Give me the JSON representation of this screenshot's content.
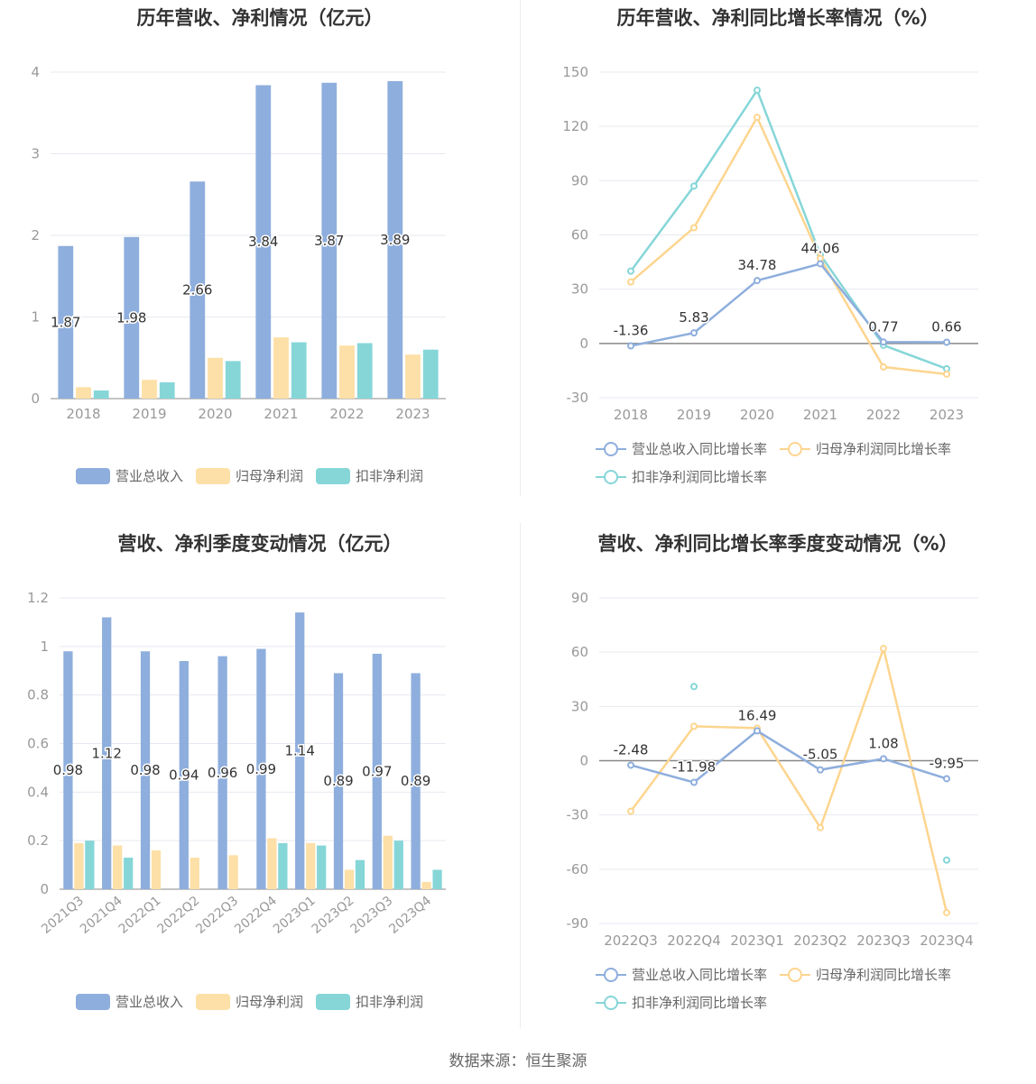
{
  "source_text": "数据来源：恒生聚源",
  "colors": {
    "revenue": "#8eaedd",
    "net": "#fde0a7",
    "deduct": "#86d6d8",
    "axis": "#999999",
    "grid": "#e6e9f0",
    "zero": "#888888"
  },
  "chart_data": [
    {
      "id": "annual-bar",
      "type": "bar",
      "title": "历年营收、净利情况（亿元）",
      "categories": [
        "2018",
        "2019",
        "2020",
        "2021",
        "2022",
        "2023"
      ],
      "ylim": [
        0,
        4
      ],
      "yticks": [
        "0",
        "1",
        "2",
        "3",
        "4"
      ],
      "series": [
        {
          "name": "营业总收入",
          "color": "#8eaedd",
          "values": [
            1.87,
            1.98,
            2.66,
            3.84,
            3.87,
            3.89
          ],
          "labels": [
            "1.87",
            "1.98",
            "2.66",
            "3.84",
            "3.87",
            "3.89"
          ]
        },
        {
          "name": "归母净利润",
          "color": "#fde0a7",
          "values": [
            0.14,
            0.23,
            0.5,
            0.75,
            0.65,
            0.54
          ]
        },
        {
          "name": "扣非净利润",
          "color": "#86d6d8",
          "values": [
            0.1,
            0.2,
            0.46,
            0.69,
            0.68,
            0.6
          ]
        }
      ],
      "legend": "bottom"
    },
    {
      "id": "annual-growth",
      "type": "line",
      "title": "历年营收、净利同比增长率情况（%）",
      "categories": [
        "2018",
        "2019",
        "2020",
        "2021",
        "2022",
        "2023"
      ],
      "ylim": [
        -30,
        150
      ],
      "yticks": [
        "-30",
        "0",
        "30",
        "60",
        "90",
        "120",
        "150"
      ],
      "series": [
        {
          "name": "营业总收入同比增长率",
          "color": "#8eaedd",
          "values": [
            -1.36,
            5.83,
            34.78,
            44.06,
            0.77,
            0.66
          ],
          "labels": [
            "-1.36",
            "5.83",
            "34.78",
            "44.06",
            "0.77",
            "0.66"
          ]
        },
        {
          "name": "归母净利润同比增长率",
          "color": "#fdd58f",
          "values": [
            34,
            64,
            125,
            47,
            -13,
            -17
          ]
        },
        {
          "name": "扣非净利润同比增长率",
          "color": "#86d6d8",
          "values": [
            40,
            87,
            140,
            49,
            -1,
            -14
          ]
        }
      ],
      "legend": "bottom"
    },
    {
      "id": "quarterly-bar",
      "type": "bar",
      "title": "营收、净利季度变动情况（亿元）",
      "categories": [
        "2021Q3",
        "2021Q4",
        "2022Q1",
        "2022Q2",
        "2022Q3",
        "2022Q4",
        "2023Q1",
        "2023Q2",
        "2023Q3",
        "2023Q4"
      ],
      "ylim": [
        0,
        1.2
      ],
      "yticks": [
        "0",
        "0.2",
        "0.4",
        "0.6",
        "0.8",
        "1",
        "1.2"
      ],
      "series": [
        {
          "name": "营业总收入",
          "color": "#8eaedd",
          "values": [
            0.98,
            1.12,
            0.98,
            0.94,
            0.96,
            0.99,
            1.14,
            0.89,
            0.97,
            0.89
          ],
          "labels": [
            "0.98",
            "1.12",
            "0.98",
            "0.94",
            "0.96",
            "0.99",
            "1.14",
            "0.89",
            "0.97",
            "0.89"
          ]
        },
        {
          "name": "归母净利润",
          "color": "#fde0a7",
          "values": [
            0.19,
            0.18,
            0.16,
            0.13,
            0.14,
            0.21,
            0.19,
            0.08,
            0.22,
            0.03
          ]
        },
        {
          "name": "扣非净利润",
          "color": "#86d6d8",
          "values": [
            0.2,
            0.13,
            null,
            null,
            null,
            0.19,
            0.18,
            0.12,
            0.2,
            0.08
          ]
        }
      ],
      "legend": "bottom"
    },
    {
      "id": "quarterly-growth",
      "type": "line",
      "title": "营收、净利同比增长率季度变动情况（%）",
      "categories": [
        "2022Q3",
        "2022Q4",
        "2023Q1",
        "2023Q2",
        "2023Q3",
        "2023Q4"
      ],
      "ylim": [
        -90,
        90
      ],
      "yticks": [
        "-90",
        "-60",
        "-30",
        "0",
        "30",
        "60",
        "90"
      ],
      "series": [
        {
          "name": "营业总收入同比增长率",
          "color": "#8eaedd",
          "values": [
            -2.48,
            -11.98,
            16.49,
            -5.05,
            1.08,
            -9.95
          ],
          "labels": [
            "-2.48",
            "-11.98",
            "16.49",
            "-5.05",
            "1.08",
            "-9.95"
          ]
        },
        {
          "name": "归母净利润同比增长率",
          "color": "#fdd58f",
          "values": [
            -28,
            19,
            18,
            -37,
            62,
            -84
          ]
        },
        {
          "name": "扣非净利润同比增长率",
          "color": "#86d6d8",
          "values": [
            null,
            41,
            null,
            null,
            null,
            -55
          ]
        }
      ],
      "legend": "bottom"
    }
  ]
}
